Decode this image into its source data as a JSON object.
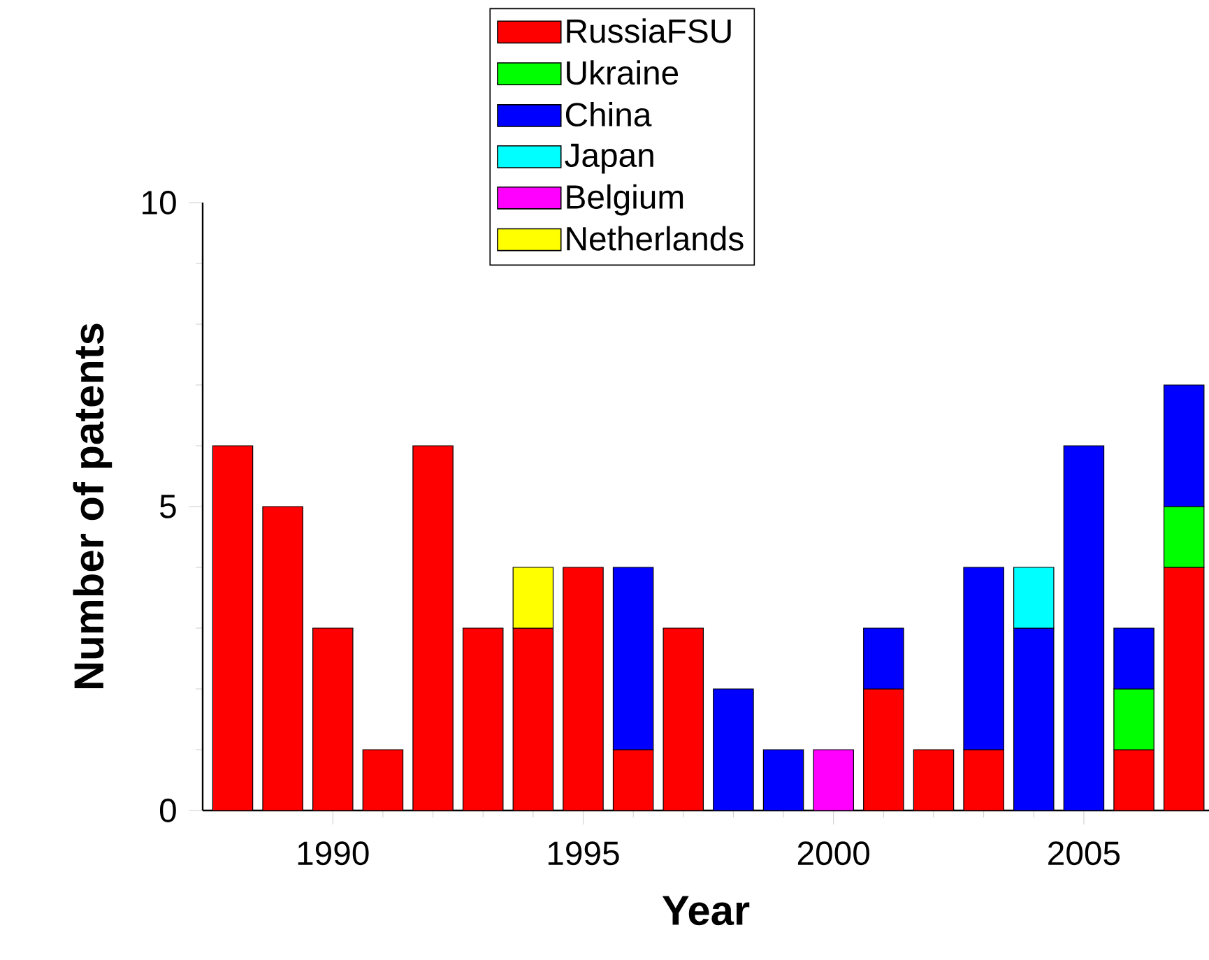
{
  "chart_data": {
    "type": "bar",
    "stacked": true,
    "xlabel": "Year",
    "ylabel": "Number of patents",
    "x": [
      1988,
      1989,
      1990,
      1991,
      1992,
      1993,
      1994,
      1995,
      1996,
      1997,
      1998,
      1999,
      2000,
      2001,
      2002,
      2003,
      2004,
      2005,
      2006,
      2007
    ],
    "series": [
      {
        "name": "RussiaFSU",
        "color": "#ff0000",
        "values": [
          6,
          5,
          3,
          1,
          6,
          3,
          3,
          4,
          1,
          3,
          null,
          null,
          null,
          2,
          1,
          1,
          null,
          null,
          1,
          4
        ]
      },
      {
        "name": "Ukraine",
        "color": "#00ff00",
        "values": [
          null,
          null,
          null,
          null,
          null,
          null,
          null,
          null,
          null,
          null,
          null,
          null,
          null,
          null,
          null,
          null,
          null,
          null,
          1,
          1
        ]
      },
      {
        "name": "China",
        "color": "#0000ff",
        "values": [
          null,
          null,
          null,
          null,
          null,
          null,
          null,
          null,
          3,
          null,
          2,
          1,
          null,
          1,
          null,
          3,
          3,
          6,
          1,
          2
        ]
      },
      {
        "name": "Japan",
        "color": "#00ffff",
        "values": [
          null,
          null,
          null,
          null,
          null,
          null,
          null,
          null,
          null,
          null,
          null,
          null,
          null,
          null,
          null,
          null,
          1,
          null,
          null,
          null
        ]
      },
      {
        "name": "Belgium",
        "color": "#ff00ff",
        "values": [
          null,
          null,
          null,
          null,
          null,
          null,
          null,
          null,
          null,
          null,
          null,
          null,
          1,
          null,
          null,
          null,
          null,
          null,
          null,
          null
        ]
      },
      {
        "name": "Netherlands",
        "color": "#ffff00",
        "values": [
          null,
          null,
          null,
          null,
          null,
          null,
          1,
          null,
          null,
          null,
          null,
          null,
          null,
          null,
          null,
          null,
          null,
          null,
          null,
          null
        ]
      }
    ],
    "xlim": [
      1987.4,
      2007.5
    ],
    "xticks": [
      1990,
      1995,
      2000,
      2005
    ],
    "ylim": [
      0,
      10
    ],
    "yticks": [
      0,
      5,
      10
    ],
    "grid": false,
    "legend": "top"
  }
}
